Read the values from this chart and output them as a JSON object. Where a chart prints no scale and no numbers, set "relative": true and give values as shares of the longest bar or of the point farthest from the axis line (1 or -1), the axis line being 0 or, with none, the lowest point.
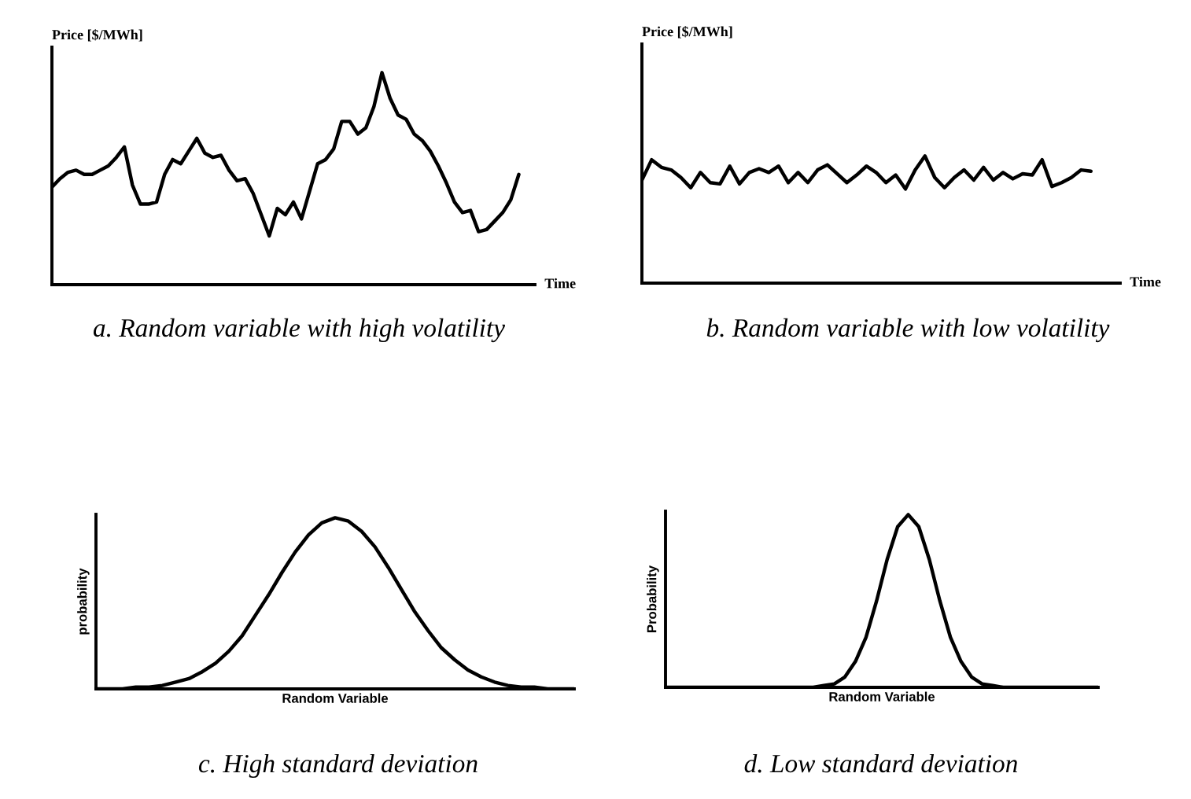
{
  "chart_data": [
    {
      "type": "line",
      "relative": true,
      "title": "a. Random variable with high volatility",
      "xlabel": "Time",
      "ylabel": "Price [$/MWh]",
      "categories": [
        null,
        null,
        null,
        null,
        null,
        null,
        null,
        null,
        null,
        null,
        null,
        null,
        null,
        null,
        null,
        null,
        null,
        null,
        null,
        null,
        null,
        null,
        null,
        null,
        null,
        null,
        null,
        null,
        null,
        null,
        null,
        null,
        null,
        null,
        null,
        null,
        null,
        null,
        null,
        null,
        null,
        null,
        null,
        null,
        null,
        null,
        null,
        null,
        null,
        null,
        null,
        null,
        null,
        null,
        null,
        null,
        null,
        null,
        null,
        null,
        null
      ],
      "series": [
        {
          "color": "#000000",
          "values": [
            0.46,
            0.5,
            0.53,
            0.54,
            0.52,
            0.52,
            0.54,
            0.56,
            0.6,
            0.65,
            0.47,
            0.38,
            0.38,
            0.39,
            0.52,
            0.59,
            0.57,
            0.63,
            0.69,
            0.62,
            0.6,
            0.61,
            0.54,
            0.49,
            0.5,
            0.43,
            0.33,
            0.23,
            0.36,
            0.33,
            0.39,
            0.31,
            0.44,
            0.57,
            0.59,
            0.64,
            0.77,
            0.77,
            0.71,
            0.74,
            0.84,
            1.0,
            0.88,
            0.8,
            0.78,
            0.71,
            0.68,
            0.63,
            0.56,
            0.48,
            0.39,
            0.34,
            0.35,
            0.25,
            0.26,
            0.3,
            0.34,
            0.4,
            0.52,
            null,
            null
          ]
        }
      ]
    },
    {
      "type": "line",
      "relative": true,
      "title": "b. Random variable with low volatility",
      "xlabel": "Time",
      "ylabel": "Price [$/MWh]",
      "categories": [
        null,
        null,
        null,
        null,
        null,
        null,
        null,
        null,
        null,
        null,
        null,
        null,
        null,
        null,
        null,
        null,
        null,
        null,
        null,
        null,
        null,
        null,
        null,
        null,
        null,
        null,
        null,
        null,
        null,
        null,
        null,
        null,
        null,
        null,
        null,
        null,
        null,
        null,
        null,
        null,
        null,
        null,
        null,
        null,
        null,
        null,
        null,
        null,
        null,
        null
      ],
      "series": [
        {
          "color": "#000000",
          "values": [
            0.81,
            0.97,
            0.91,
            0.89,
            0.83,
            0.75,
            0.87,
            0.79,
            0.78,
            0.92,
            0.78,
            0.87,
            0.9,
            0.87,
            0.92,
            0.79,
            0.87,
            0.79,
            0.89,
            0.93,
            0.86,
            0.79,
            0.85,
            0.92,
            0.87,
            0.79,
            0.85,
            0.74,
            0.89,
            1.0,
            0.83,
            0.75,
            0.83,
            0.89,
            0.81,
            0.91,
            0.81,
            0.87,
            0.82,
            0.86,
            0.85,
            0.97,
            0.76,
            0.79,
            0.83,
            0.89,
            0.88,
            null,
            null,
            null
          ]
        }
      ]
    },
    {
      "type": "line",
      "relative": true,
      "title": "c. High standard deviation",
      "xlabel": "Random Variable",
      "ylabel": "probability",
      "categories": [
        null,
        null,
        null,
        null,
        null,
        null,
        null,
        null,
        null,
        null,
        null,
        null,
        null,
        null,
        null,
        null,
        null,
        null,
        null,
        null,
        null,
        null,
        null,
        null,
        null,
        null,
        null,
        null,
        null,
        null,
        null,
        null,
        null,
        null,
        null,
        null,
        null
      ],
      "series": [
        {
          "color": "#000000",
          "values": [
            0.0,
            0.0,
            0.0,
            0.01,
            0.01,
            0.02,
            0.04,
            0.06,
            0.1,
            0.15,
            0.22,
            0.31,
            0.43,
            0.55,
            0.68,
            0.8,
            0.9,
            0.97,
            1.0,
            0.98,
            0.92,
            0.83,
            0.71,
            0.58,
            0.45,
            0.34,
            0.24,
            0.17,
            0.11,
            0.07,
            0.04,
            0.02,
            0.01,
            0.01,
            0.0,
            0.0,
            0.0
          ]
        }
      ]
    },
    {
      "type": "line",
      "relative": true,
      "title": "d. Low standard deviation",
      "xlabel": "Random Variable",
      "ylabel": "Probability",
      "categories": [
        null,
        null,
        null,
        null,
        null,
        null,
        null,
        null,
        null,
        null,
        null,
        null,
        null,
        null,
        null,
        null,
        null,
        null,
        null,
        null,
        null,
        null,
        null,
        null,
        null,
        null,
        null,
        null,
        null,
        null,
        null,
        null,
        null,
        null,
        null,
        null,
        null,
        null,
        null,
        null,
        null,
        null
      ],
      "series": [
        {
          "color": "#000000",
          "values": [
            0.0,
            0.0,
            0.0,
            0.0,
            0.0,
            0.0,
            0.0,
            0.0,
            0.0,
            0.0,
            0.0,
            0.0,
            0.0,
            0.0,
            0.0,
            0.01,
            0.02,
            0.06,
            0.15,
            0.29,
            0.5,
            0.74,
            0.93,
            1.0,
            0.93,
            0.74,
            0.5,
            0.29,
            0.15,
            0.06,
            0.02,
            0.01,
            0.0,
            0.0,
            0.0,
            0.0,
            0.0,
            0.0,
            0.0,
            0.0,
            0.0,
            0.0
          ]
        }
      ]
    }
  ]
}
